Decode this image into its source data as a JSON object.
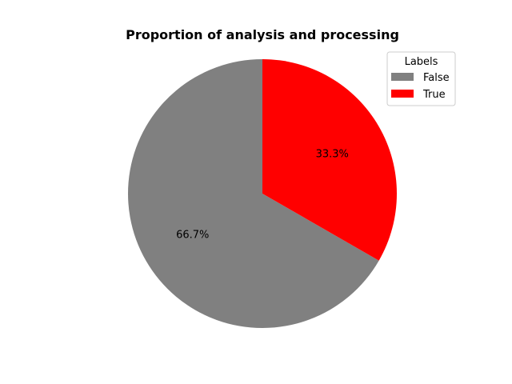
{
  "chart_data": {
    "type": "pie",
    "title": "Proportion of analysis and processing",
    "categories": [
      "False",
      "True"
    ],
    "values": [
      66.7,
      33.3
    ],
    "labels": [
      "66.7%",
      "33.3%"
    ],
    "colors": [
      "#808080",
      "#ff0000"
    ],
    "start_angle_deg": 90,
    "direction": "counterclockwise",
    "legend": {
      "title": "Labels",
      "placement": "top-right",
      "entries": [
        "False",
        "True"
      ]
    }
  }
}
